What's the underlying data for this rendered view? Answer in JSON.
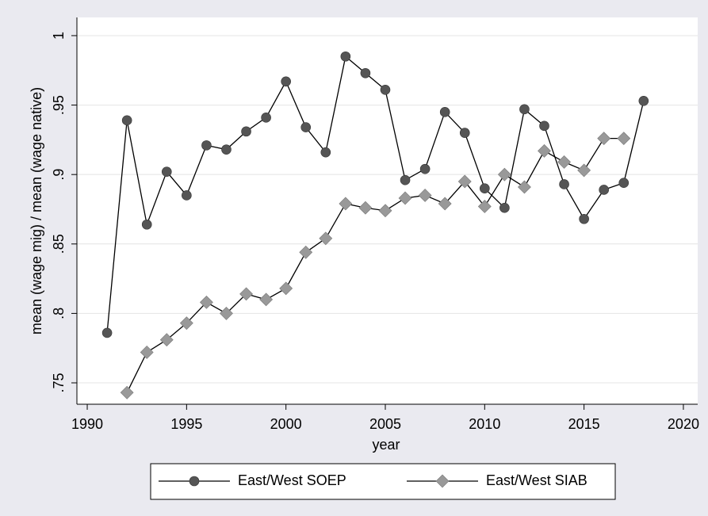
{
  "chart_data": {
    "type": "line",
    "xlabel": "year",
    "ylabel": "mean (wage mig) / mean (wage native)",
    "x": [
      1991,
      1992,
      1993,
      1994,
      1995,
      1996,
      1997,
      1998,
      1999,
      2000,
      2001,
      2002,
      2003,
      2004,
      2005,
      2006,
      2007,
      2008,
      2009,
      2010,
      2011,
      2012,
      2013,
      2014,
      2015,
      2016,
      2017,
      2018
    ],
    "series": [
      {
        "name": "East/West SOEP",
        "color": "#555555",
        "marker": "circle",
        "values": [
          0.786,
          0.939,
          0.864,
          0.902,
          0.885,
          0.921,
          0.918,
          0.931,
          0.941,
          0.967,
          0.934,
          0.916,
          0.985,
          0.973,
          0.961,
          0.896,
          0.904,
          0.945,
          0.93,
          0.89,
          0.876,
          0.947,
          0.935,
          0.893,
          0.868,
          0.889,
          0.894,
          0.953
        ]
      },
      {
        "name": "East/West SIAB",
        "color": "#999999",
        "marker": "diamond",
        "values": [
          null,
          0.743,
          0.772,
          0.781,
          0.793,
          0.808,
          0.8,
          0.814,
          0.81,
          0.818,
          0.844,
          0.854,
          0.879,
          0.876,
          0.874,
          0.883,
          0.885,
          0.879,
          0.895,
          0.877,
          0.9,
          0.891,
          0.917,
          0.909,
          0.903,
          0.926,
          0.926,
          null
        ]
      }
    ],
    "xlim": [
      1989.48,
      2020.72
    ],
    "ylim": [
      0.7346,
      1.0131
    ],
    "xticks": [
      1990,
      1995,
      2000,
      2005,
      2010,
      2015,
      2020
    ],
    "yticks": [
      {
        "value": 0.75,
        "label": ".75"
      },
      {
        "value": 0.8,
        "label": ".8"
      },
      {
        "value": 0.85,
        "label": ".85"
      },
      {
        "value": 0.9,
        "label": ".9"
      },
      {
        "value": 0.95,
        "label": ".95"
      },
      1
    ],
    "grid": true,
    "legend": "bottom"
  }
}
